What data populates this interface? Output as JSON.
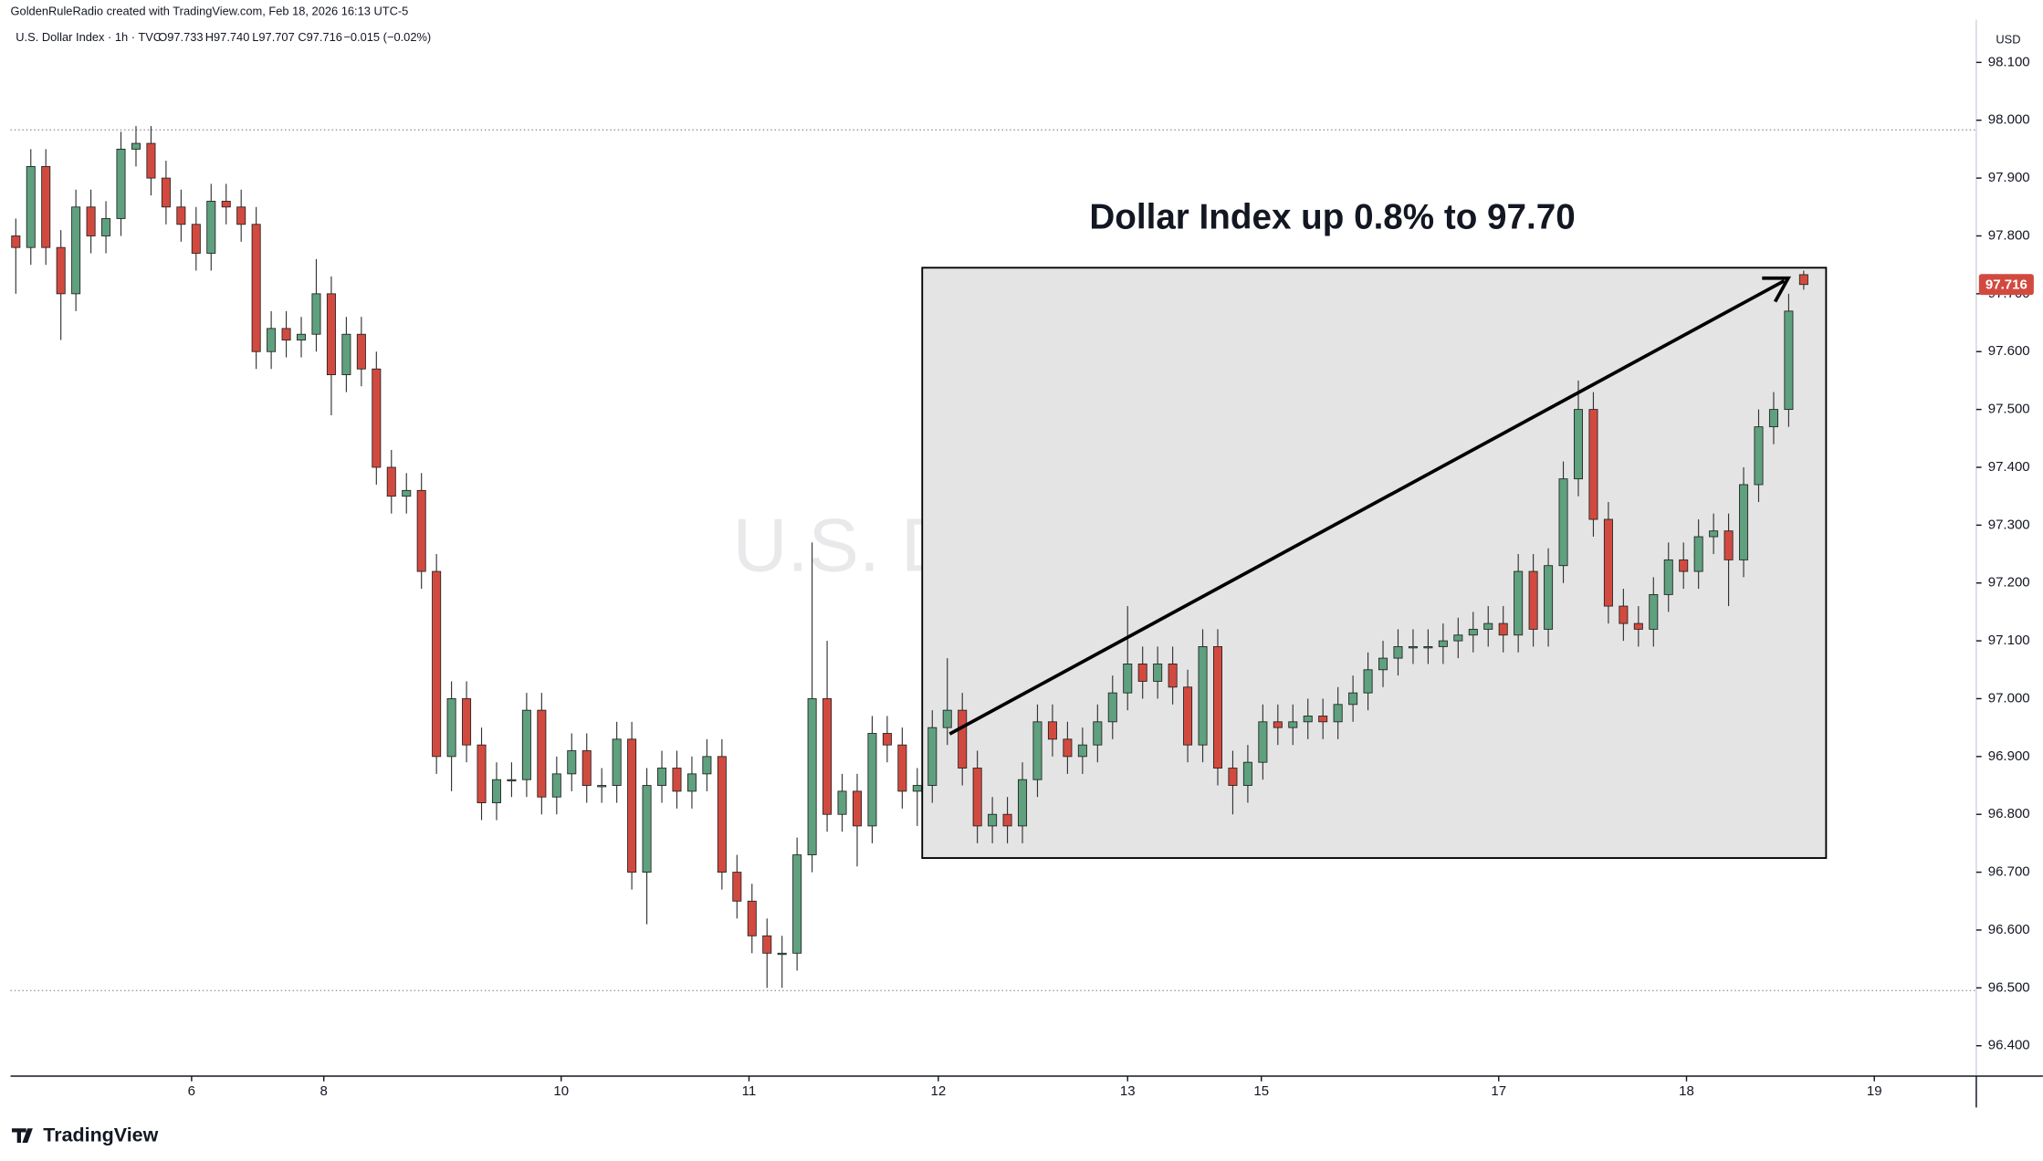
{
  "header": {
    "credit": "GoldenRuleRadio created with TradingView.com, Feb 18, 2026 16:13 UTC-5"
  },
  "legend": {
    "symbol": "U.S. Dollar Index · 1h · TVC",
    "open": "O97.733",
    "high": "H97.740",
    "low": "L97.707",
    "close": "C97.716",
    "change": "−0.015 (−0.02%)"
  },
  "currency": "USD",
  "footer": {
    "brand": "TradingView"
  },
  "chart_data": {
    "type": "candlestick",
    "annotation": "Dollar Index up 0.8% to 97.70",
    "series": [
      {
        "name": "U.S. Dollar Index",
        "up_color": "#5fa07e",
        "down_color": "#d24a3f",
        "open": [
          97.8,
          97.78,
          97.92,
          97.78,
          97.7,
          97.85,
          97.8,
          97.83,
          97.95,
          97.96,
          97.9,
          97.85,
          97.82,
          97.77,
          97.86,
          97.85,
          97.82,
          97.6,
          97.64,
          97.62,
          97.63,
          97.7,
          97.56,
          97.63,
          97.57,
          97.4,
          97.35,
          97.36,
          97.22,
          96.9,
          97.0,
          96.92,
          96.82,
          96.86,
          96.86,
          96.98,
          96.83,
          96.87,
          96.91,
          96.85,
          96.85,
          96.93,
          96.7,
          96.85,
          96.88,
          96.84,
          96.87,
          96.9,
          96.7,
          96.65,
          96.59,
          96.56,
          96.56,
          96.73,
          97.0,
          96.8,
          96.84,
          96.78,
          96.94,
          96.92,
          96.84,
          96.85,
          96.95,
          96.98,
          96.88,
          96.78,
          96.8,
          96.78,
          96.86,
          96.96,
          96.93,
          96.9,
          96.92,
          96.96,
          97.01,
          97.06,
          97.03,
          97.06,
          97.02,
          96.92,
          97.09,
          96.88,
          96.85,
          96.89,
          96.96,
          96.95,
          96.96,
          96.97,
          96.96,
          96.99,
          97.01,
          97.05,
          97.07,
          97.09,
          97.09,
          97.09,
          97.1,
          97.11,
          97.12,
          97.13,
          97.11,
          97.22,
          97.12,
          97.23,
          97.38,
          97.5,
          97.31,
          97.16,
          97.13,
          97.12,
          97.18,
          97.24,
          97.22,
          97.28,
          97.29,
          97.24,
          97.37,
          97.47,
          97.5,
          97.733
        ],
        "high": [
          97.83,
          97.95,
          97.95,
          97.81,
          97.88,
          97.88,
          97.86,
          97.98,
          97.99,
          97.99,
          97.93,
          97.88,
          97.85,
          97.89,
          97.89,
          97.88,
          97.85,
          97.67,
          97.67,
          97.66,
          97.76,
          97.73,
          97.66,
          97.66,
          97.6,
          97.43,
          97.39,
          97.39,
          97.25,
          97.03,
          97.03,
          96.95,
          96.89,
          96.89,
          97.01,
          97.01,
          96.9,
          96.94,
          96.94,
          96.88,
          96.96,
          96.96,
          96.88,
          96.91,
          96.91,
          96.9,
          96.93,
          96.93,
          96.73,
          96.68,
          96.62,
          96.59,
          96.76,
          97.27,
          97.1,
          96.87,
          96.87,
          96.97,
          96.97,
          96.95,
          96.88,
          96.98,
          97.07,
          97.01,
          96.91,
          96.83,
          96.83,
          96.89,
          96.99,
          96.99,
          96.96,
          96.95,
          96.99,
          97.04,
          97.16,
          97.09,
          97.09,
          97.09,
          97.05,
          97.12,
          97.12,
          96.91,
          96.92,
          96.99,
          96.99,
          96.99,
          97.0,
          97.0,
          97.02,
          97.04,
          97.08,
          97.1,
          97.12,
          97.12,
          97.12,
          97.13,
          97.14,
          97.15,
          97.16,
          97.16,
          97.25,
          97.25,
          97.26,
          97.41,
          97.55,
          97.53,
          97.34,
          97.19,
          97.16,
          97.21,
          97.27,
          97.27,
          97.31,
          97.32,
          97.32,
          97.4,
          97.5,
          97.53,
          97.7,
          97.74
        ],
        "low": [
          97.7,
          97.75,
          97.75,
          97.62,
          97.67,
          97.77,
          97.77,
          97.8,
          97.92,
          97.87,
          97.82,
          97.79,
          97.74,
          97.74,
          97.82,
          97.79,
          97.57,
          97.57,
          97.59,
          97.59,
          97.6,
          97.49,
          97.53,
          97.54,
          97.37,
          97.32,
          97.32,
          97.19,
          96.87,
          96.84,
          96.89,
          96.79,
          96.79,
          96.83,
          96.83,
          96.8,
          96.8,
          96.84,
          96.82,
          96.82,
          96.82,
          96.67,
          96.61,
          96.82,
          96.81,
          96.81,
          96.84,
          96.67,
          96.62,
          96.56,
          96.5,
          96.5,
          96.53,
          96.7,
          96.77,
          96.77,
          96.71,
          96.75,
          96.89,
          96.81,
          96.78,
          96.82,
          96.92,
          96.85,
          96.75,
          96.75,
          96.75,
          96.75,
          96.83,
          96.9,
          96.87,
          96.87,
          96.89,
          96.93,
          96.98,
          97.0,
          97.0,
          96.99,
          96.89,
          96.89,
          96.85,
          96.8,
          96.82,
          96.86,
          96.92,
          96.92,
          96.93,
          96.93,
          96.93,
          96.96,
          96.98,
          97.02,
          97.04,
          97.06,
          97.06,
          97.06,
          97.07,
          97.08,
          97.09,
          97.08,
          97.08,
          97.09,
          97.09,
          97.2,
          97.35,
          97.28,
          97.13,
          97.1,
          97.09,
          97.09,
          97.15,
          97.19,
          97.19,
          97.25,
          97.16,
          97.21,
          97.34,
          97.44,
          97.47,
          97.707
        ],
        "close": [
          97.78,
          97.92,
          97.78,
          97.7,
          97.85,
          97.8,
          97.83,
          97.95,
          97.96,
          97.9,
          97.85,
          97.82,
          97.77,
          97.86,
          97.85,
          97.82,
          97.6,
          97.64,
          97.62,
          97.63,
          97.7,
          97.56,
          97.63,
          97.57,
          97.4,
          97.35,
          97.36,
          97.22,
          96.9,
          97.0,
          96.92,
          96.82,
          96.86,
          96.86,
          96.98,
          96.83,
          96.87,
          96.91,
          96.85,
          96.85,
          96.93,
          96.7,
          96.85,
          96.88,
          96.84,
          96.87,
          96.9,
          96.7,
          96.65,
          96.59,
          96.56,
          96.56,
          96.73,
          97.0,
          96.8,
          96.84,
          96.78,
          96.94,
          96.92,
          96.84,
          96.85,
          96.95,
          96.98,
          96.88,
          96.78,
          96.8,
          96.78,
          96.86,
          96.96,
          96.93,
          96.9,
          96.92,
          96.96,
          97.01,
          97.06,
          97.03,
          97.06,
          97.02,
          96.92,
          97.09,
          96.88,
          96.85,
          96.89,
          96.96,
          96.95,
          96.96,
          96.97,
          96.96,
          96.99,
          97.01,
          97.05,
          97.07,
          97.09,
          97.09,
          97.09,
          97.1,
          97.11,
          97.12,
          97.13,
          97.11,
          97.22,
          97.12,
          97.23,
          97.38,
          97.5,
          97.31,
          97.16,
          97.13,
          97.12,
          97.18,
          97.24,
          97.22,
          97.28,
          97.29,
          97.24,
          97.37,
          97.47,
          97.5,
          97.67,
          97.716
        ]
      }
    ],
    "last_price_color": "#d24a3f",
    "xlim": [
      -0.35,
      130.4
    ],
    "xticks": [
      {
        "value": 11.7,
        "label": "6"
      },
      {
        "value": 20.5,
        "label": "8"
      },
      {
        "value": 36.3,
        "label": "10"
      },
      {
        "value": 48.8,
        "label": "11"
      },
      {
        "value": 61.4,
        "label": "12"
      },
      {
        "value": 74,
        "label": "13"
      },
      {
        "value": 82.9,
        "label": "15"
      },
      {
        "value": 98.7,
        "label": "17"
      },
      {
        "value": 111.2,
        "label": "18"
      },
      {
        "value": 123.7,
        "label": "19"
      }
    ],
    "ylim": [
      96.352,
      98.174
    ],
    "yticks": [
      {
        "value": 96.4,
        "label": "96.400"
      },
      {
        "value": 96.5,
        "label": "96.500"
      },
      {
        "value": 96.6,
        "label": "96.600"
      },
      {
        "value": 96.7,
        "label": "96.700"
      },
      {
        "value": 96.8,
        "label": "96.800"
      },
      {
        "value": 96.9,
        "label": "96.900"
      },
      {
        "value": 97.0,
        "label": "97.000"
      },
      {
        "value": 97.1,
        "label": "97.100"
      },
      {
        "value": 97.2,
        "label": "97.200"
      },
      {
        "value": 97.3,
        "label": "97.300"
      },
      {
        "value": 97.4,
        "label": "97.400"
      },
      {
        "value": 97.5,
        "label": "97.500"
      },
      {
        "value": 97.6,
        "label": "97.600"
      },
      {
        "value": 97.7,
        "label": "97.700"
      },
      {
        "value": 97.8,
        "label": "97.800"
      },
      {
        "value": 97.9,
        "label": "97.900"
      },
      {
        "value": 98.0,
        "label": "98.000"
      },
      {
        "value": 98.1,
        "label": "98.100"
      }
    ],
    "grid": false
  }
}
